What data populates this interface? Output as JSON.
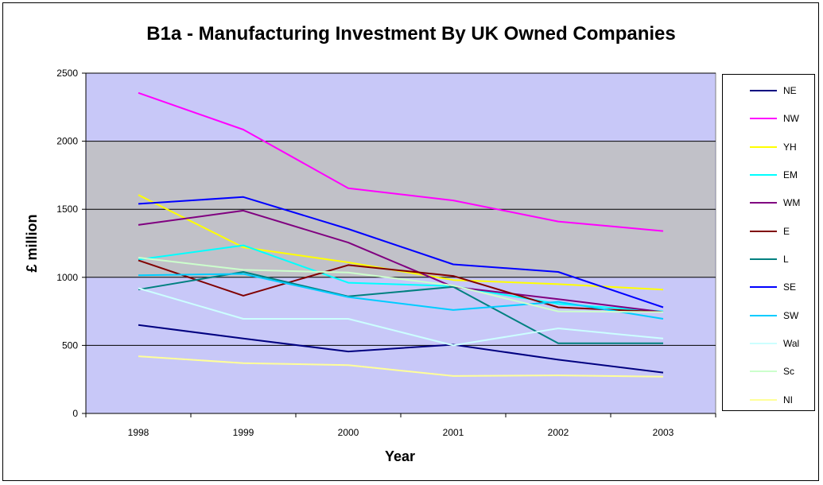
{
  "chart_data": {
    "type": "line",
    "title": "B1a - Manufacturing Investment By UK Owned Companies",
    "xlabel": "Year",
    "ylabel": "£ million",
    "categories": [
      "1998",
      "1999",
      "2000",
      "2001",
      "2002",
      "2003"
    ],
    "ylim": [
      0,
      2500
    ],
    "yticks": [
      0,
      500,
      1000,
      1500,
      2000,
      2500
    ],
    "grid": true,
    "legend_position": "right",
    "plot_background": "#c8c8f8",
    "series": [
      {
        "name": "NE",
        "color": "#000080",
        "values": [
          650,
          550,
          455,
          505,
          395,
          300
        ]
      },
      {
        "name": "NW",
        "color": "#ff00ff",
        "values": [
          2355,
          2085,
          1655,
          1565,
          1410,
          1340
        ]
      },
      {
        "name": "YH",
        "color": "#ffff00",
        "values": [
          1605,
          1220,
          1110,
          980,
          950,
          910
        ]
      },
      {
        "name": "EM",
        "color": "#00ffff",
        "values": [
          1130,
          1235,
          960,
          935,
          805,
          750
        ]
      },
      {
        "name": "WM",
        "color": "#800080",
        "values": [
          1385,
          1490,
          1255,
          930,
          840,
          745
        ]
      },
      {
        "name": "E",
        "color": "#800000",
        "values": [
          1125,
          865,
          1090,
          1010,
          780,
          745
        ]
      },
      {
        "name": "L",
        "color": "#008080",
        "values": [
          910,
          1040,
          860,
          930,
          515,
          515
        ]
      },
      {
        "name": "SE",
        "color": "#0000ff",
        "values": [
          1540,
          1590,
          1355,
          1095,
          1040,
          780
        ]
      },
      {
        "name": "SW",
        "color": "#00ccff",
        "values": [
          1015,
          1025,
          855,
          760,
          820,
          695
        ]
      },
      {
        "name": "Wal",
        "color": "#ccffff",
        "values": [
          920,
          695,
          695,
          500,
          625,
          550
        ]
      },
      {
        "name": "Sc",
        "color": "#ccffcc",
        "values": [
          1145,
          1055,
          1035,
          940,
          750,
          745
        ]
      },
      {
        "name": "NI",
        "color": "#ffff99",
        "values": [
          420,
          370,
          355,
          275,
          280,
          270
        ]
      }
    ]
  }
}
